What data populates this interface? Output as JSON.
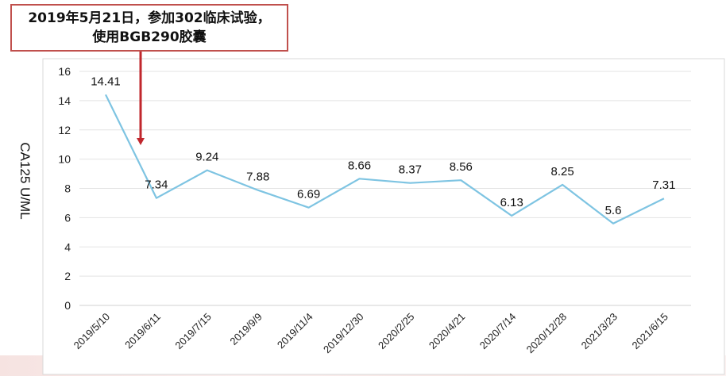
{
  "annotation": {
    "line1": "2019年5月21日，参加302临床试验，",
    "line2": "使用BGB290胶囊",
    "arrow_color": "#c0272d",
    "box_border_color": "#c0504d"
  },
  "chart_data": {
    "type": "line",
    "title": "",
    "xlabel": "",
    "ylabel": "CA125  U/ML",
    "ylim": [
      0,
      16
    ],
    "yticks": [
      0,
      2,
      4,
      6,
      8,
      10,
      12,
      14,
      16
    ],
    "grid": true,
    "legend": "none",
    "line_color": "#7ec4e2",
    "categories": [
      "2019/5/10",
      "2019/6/11",
      "2019/7/15",
      "2019/9/9",
      "2019/11/4",
      "2019/12/30",
      "2020/2/25",
      "2020/4/21",
      "2020/7/14",
      "2020/12/28",
      "2021/3/23",
      "2021/6/15"
    ],
    "values": [
      14.41,
      7.34,
      9.24,
      7.88,
      6.69,
      8.66,
      8.37,
      8.56,
      6.13,
      8.25,
      5.6,
      7.31
    ],
    "data_labels": [
      "14.41",
      "7.34",
      "9.24",
      "7.88",
      "6.69",
      "8.66",
      "8.37",
      "8.56",
      "6.13",
      "8.25",
      "5.6",
      "7.31"
    ]
  }
}
